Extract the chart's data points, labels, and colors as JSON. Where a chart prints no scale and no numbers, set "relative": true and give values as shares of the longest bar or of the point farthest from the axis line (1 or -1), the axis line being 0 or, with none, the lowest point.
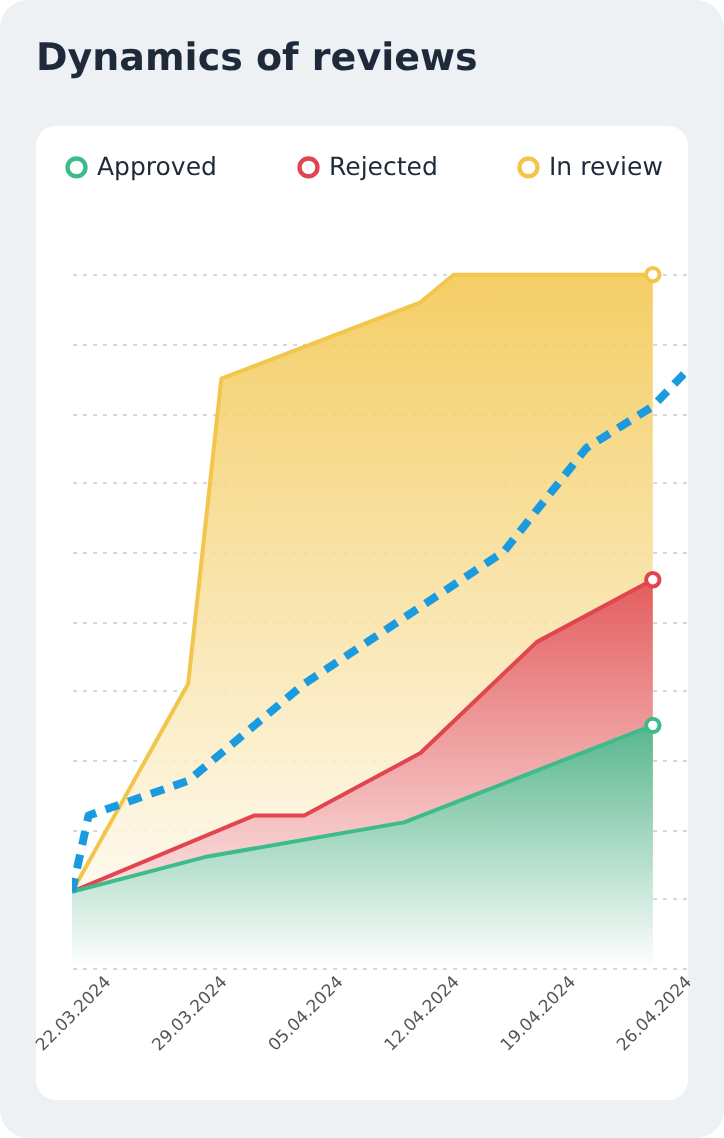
{
  "chart_data": {
    "type": "area",
    "title": "Dynamics of reviews",
    "relative": true,
    "grid": "y",
    "legend": "top",
    "xlim": [
      "2024-03-22",
      "2024-04-28"
    ],
    "xticks": [
      {
        "value": "2024-03-22",
        "label": "22.03.2024"
      },
      {
        "value": "2024-03-29",
        "label": "29.03.2024"
      },
      {
        "value": "2024-04-05",
        "label": "05.04.2024"
      },
      {
        "value": "2024-04-12",
        "label": "12.04.2024"
      },
      {
        "value": "2024-04-19",
        "label": "19.04.2024"
      },
      {
        "value": "2024-04-26",
        "label": "26.04.2024"
      }
    ],
    "series": [
      {
        "name": "Approved",
        "color": "#3dbb8a",
        "x": [
          "2024-03-22",
          "2024-03-30",
          "2024-04-11",
          "2024-04-26"
        ],
        "values": [
          0.11,
          0.16,
          0.21,
          0.35
        ]
      },
      {
        "name": "Rejected",
        "color": "#e04550",
        "x": [
          "2024-03-22",
          "2024-04-02",
          "2024-04-05",
          "2024-04-12",
          "2024-04-19",
          "2024-04-26"
        ],
        "values": [
          0.11,
          0.22,
          0.22,
          0.31,
          0.47,
          0.56
        ]
      },
      {
        "name": "In review",
        "color": "#f2c54b",
        "x": [
          "2024-03-22",
          "2024-03-29",
          "2024-03-31",
          "2024-04-12",
          "2024-04-14",
          "2024-04-26"
        ],
        "values": [
          0.11,
          0.41,
          0.85,
          0.96,
          1,
          1
        ]
      },
      {
        "type": "line",
        "line_style": "dashed",
        "color": "#1a9be0",
        "x": [
          "2024-03-22",
          "2024-03-23",
          "2024-03-29",
          "2024-04-05",
          "2024-04-17",
          "2024-04-22",
          "2024-04-26",
          "2024-04-28"
        ],
        "values": [
          0.11,
          0.22,
          0.27,
          0.41,
          0.6,
          0.75,
          0.81,
          0.86
        ]
      }
    ]
  }
}
